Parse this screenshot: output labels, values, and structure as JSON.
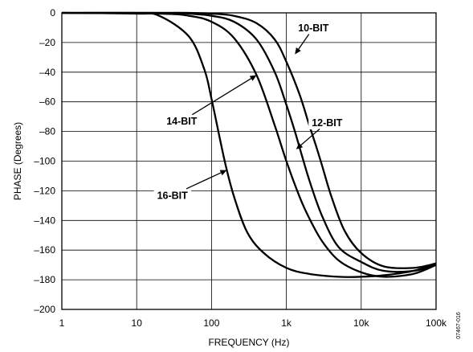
{
  "chart_data": {
    "type": "line",
    "title": "",
    "xlabel": "FREQUENCY (Hz)",
    "ylabel": "PHASE (Degrees)",
    "x_scale": "log",
    "xlim": [
      1,
      100000
    ],
    "ylim": [
      -200,
      0
    ],
    "x_ticks": [
      {
        "value": 1,
        "label": "1"
      },
      {
        "value": 10,
        "label": "10"
      },
      {
        "value": 100,
        "label": "100"
      },
      {
        "value": 1000,
        "label": "1k"
      },
      {
        "value": 10000,
        "label": "10k"
      },
      {
        "value": 100000,
        "label": "100k"
      }
    ],
    "y_ticks": [
      {
        "value": 0,
        "label": "0"
      },
      {
        "value": -20,
        "label": "–20"
      },
      {
        "value": -40,
        "label": "–40"
      },
      {
        "value": -60,
        "label": "–60"
      },
      {
        "value": -80,
        "label": "–80"
      },
      {
        "value": -100,
        "label": "–100"
      },
      {
        "value": -120,
        "label": "–120"
      },
      {
        "value": -140,
        "label": "–140"
      },
      {
        "value": -160,
        "label": "–160"
      },
      {
        "value": -180,
        "label": "–180"
      },
      {
        "value": -200,
        "label": "–200"
      }
    ],
    "grid": true,
    "series": [
      {
        "name": "10-BIT",
        "x": [
          1,
          20,
          50,
          100,
          200,
          400,
          700,
          1000,
          1500,
          2000,
          2500,
          3000,
          4000,
          6000,
          10000,
          20000,
          50000,
          100000
        ],
        "y": [
          0,
          0,
          0,
          -0.5,
          -2,
          -7,
          -18,
          -33,
          -55,
          -75,
          -90,
          -103,
          -124,
          -147,
          -162,
          -171,
          -172,
          -169
        ]
      },
      {
        "name": "12-BIT",
        "x": [
          1,
          20,
          50,
          100,
          200,
          400,
          700,
          1000,
          1300,
          2000,
          3000,
          5000,
          10000,
          20000,
          50000,
          100000
        ],
        "y": [
          0,
          0,
          -0.5,
          -2,
          -6,
          -18,
          -40,
          -62,
          -80,
          -112,
          -137,
          -158,
          -168,
          -174,
          -174,
          -170
        ]
      },
      {
        "name": "14-BIT",
        "x": [
          1,
          20,
          50,
          100,
          200,
          400,
          700,
          1000,
          1500,
          2000,
          3000,
          5000,
          10000,
          20000,
          50000,
          100000
        ],
        "y": [
          0,
          -0.5,
          -2,
          -6,
          -17,
          -42,
          -76,
          -100,
          -124,
          -138,
          -154,
          -167,
          -175,
          -178,
          -176,
          -170
        ]
      },
      {
        "name": "16-BIT",
        "x": [
          1,
          10,
          20,
          50,
          80,
          100,
          150,
          200,
          300,
          500,
          1000,
          2000,
          5000,
          10000,
          20000,
          50000,
          100000
        ],
        "y": [
          0,
          -0.5,
          -2,
          -16,
          -38,
          -58,
          -100,
          -124,
          -148,
          -162,
          -172,
          -176,
          -178,
          -178,
          -177,
          -174,
          -169
        ]
      }
    ],
    "annotations": [
      {
        "text": "10-BIT",
        "target_x": 1300,
        "target_y": -28,
        "label_x": 2300,
        "label_y": -10
      },
      {
        "text": "12-BIT",
        "target_x": 1350,
        "target_y": -92,
        "label_x": 3500,
        "label_y": -74
      },
      {
        "text": "14-BIT",
        "target_x": 400,
        "target_y": -42,
        "label_x": 40,
        "label_y": -73
      },
      {
        "text": "16-BIT",
        "target_x": 160,
        "target_y": -106,
        "label_x": 30,
        "label_y": -123
      }
    ]
  },
  "figure_code": "07467-016"
}
